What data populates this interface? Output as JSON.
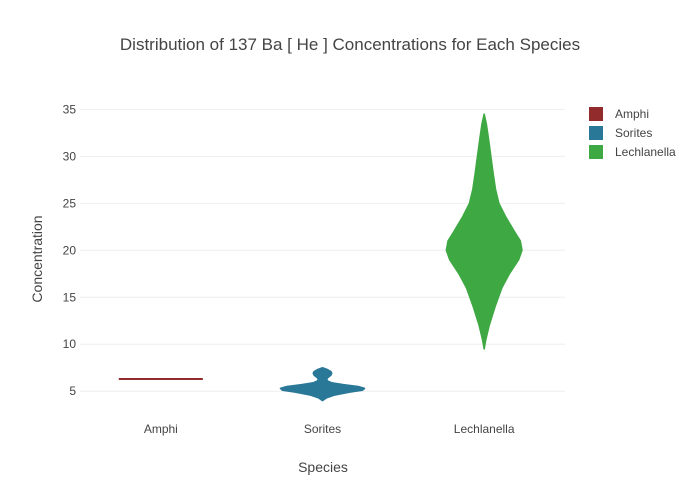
{
  "chart_data": {
    "type": "violin",
    "title": "Distribution of 137  Ba  [ He ]  Concentrations for Each Species",
    "xlabel": "Species",
    "ylabel": "Concentration",
    "ylim": [
      3,
      36
    ],
    "yticks": [
      5,
      10,
      15,
      20,
      25,
      30,
      35
    ],
    "categories": [
      "Amphi",
      "Sorites",
      "Lechlanella"
    ],
    "grid": true,
    "legend_position": "top-right",
    "series": [
      {
        "name": "Amphi",
        "color": "#922b2b",
        "profile": [
          [
            6.3,
            1.0
          ]
        ]
      },
      {
        "name": "Sorites",
        "color": "#2a7898",
        "profile": [
          [
            4.0,
            0.0
          ],
          [
            4.3,
            0.1
          ],
          [
            4.6,
            0.3
          ],
          [
            4.9,
            0.65
          ],
          [
            5.1,
            0.95
          ],
          [
            5.3,
            1.0
          ],
          [
            5.5,
            0.85
          ],
          [
            5.7,
            0.5
          ],
          [
            5.9,
            0.22
          ],
          [
            6.1,
            0.12
          ],
          [
            6.3,
            0.1
          ],
          [
            6.5,
            0.14
          ],
          [
            6.7,
            0.2
          ],
          [
            6.9,
            0.22
          ],
          [
            7.1,
            0.2
          ],
          [
            7.3,
            0.12
          ],
          [
            7.5,
            0.0
          ]
        ]
      },
      {
        "name": "Lechlanella",
        "color": "#3ea843",
        "profile": [
          [
            9.5,
            0.0
          ],
          [
            10.5,
            0.04
          ],
          [
            12.0,
            0.12
          ],
          [
            14.0,
            0.26
          ],
          [
            16.0,
            0.42
          ],
          [
            17.5,
            0.6
          ],
          [
            19.0,
            0.82
          ],
          [
            20.0,
            0.9
          ],
          [
            21.0,
            0.86
          ],
          [
            22.0,
            0.72
          ],
          [
            23.5,
            0.52
          ],
          [
            25.0,
            0.35
          ],
          [
            26.5,
            0.27
          ],
          [
            28.0,
            0.22
          ],
          [
            30.0,
            0.16
          ],
          [
            32.0,
            0.1
          ],
          [
            33.5,
            0.05
          ],
          [
            34.5,
            0.0
          ]
        ]
      }
    ]
  }
}
